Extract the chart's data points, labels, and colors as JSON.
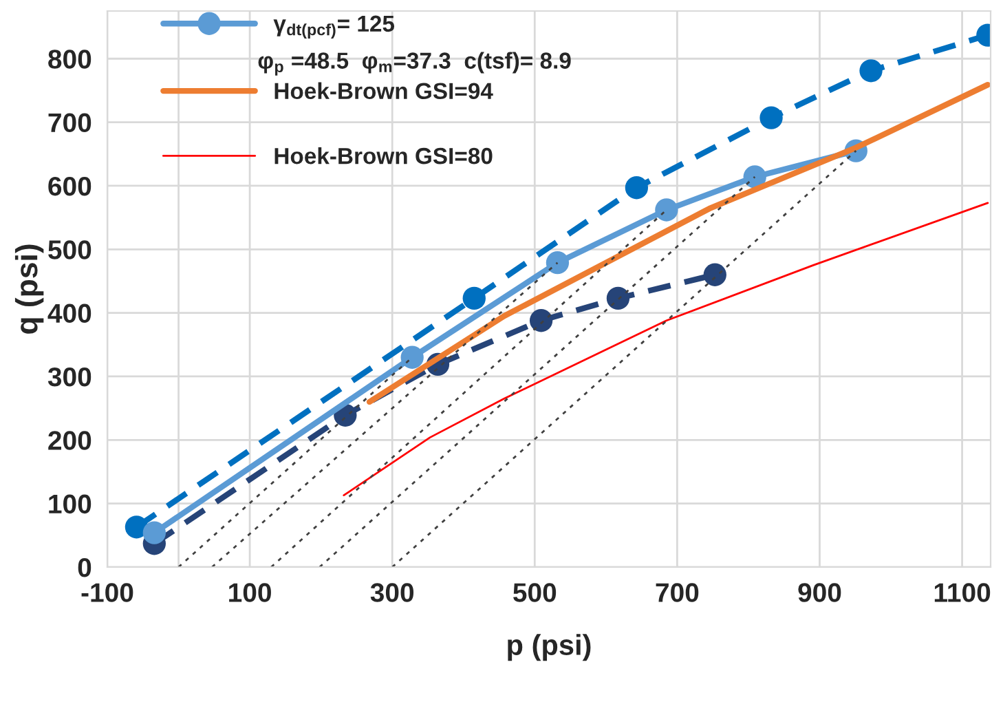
{
  "chart_data": {
    "type": "line",
    "xlabel": "p (psi)",
    "ylabel": "q (psi)",
    "xlim": [
      -100,
      1140
    ],
    "ylim": [
      0,
      875
    ],
    "xticks": [
      -100,
      {
        "value": 0,
        "label": null
      },
      100,
      300,
      500,
      700,
      900,
      1100
    ],
    "yticks": [
      0,
      100,
      200,
      300,
      400,
      500,
      600,
      700,
      800
    ],
    "grid": true,
    "legend": "top left",
    "annotations": [
      "φ$_{p}$ =48.5  φ$_{m}$=37.3  c(tsf)= 8.9"
    ],
    "series": [
      {
        "color": "#0070c0",
        "marker": "circle",
        "line_style": "dashed",
        "x": [
          -59,
          415,
          643,
          832,
          972,
          1136
        ],
        "values": [
          63,
          423,
          597,
          707,
          781,
          837
        ]
      },
      {
        "color": "#264478",
        "marker": "circle",
        "line_style": "dashed",
        "x": [
          -34,
          234,
          364,
          509,
          617,
          753
        ],
        "values": [
          37,
          239,
          319,
          388,
          423,
          460
        ]
      },
      {
        "name": "γ$_{dt(pcf)}$= 125",
        "color": "#5b9bd5",
        "marker": "circle",
        "line_style": "solid",
        "x": [
          -34,
          328,
          532,
          685,
          809,
          951
        ],
        "values": [
          54,
          330,
          479,
          562,
          614,
          655
        ]
      },
      {
        "name": "Hoek-Brown GSI=94",
        "color": "#ed7d31",
        "marker": "none",
        "line_style": "solid",
        "x": [
          268,
          457,
          745,
          951,
          1136
        ],
        "values": [
          260,
          395,
          564,
          660,
          759
        ]
      },
      {
        "name": "Hoek-Brown GSI=80",
        "color": "#ff0000",
        "marker": "none",
        "line_style": "solid",
        "x": [
          232,
          353,
          457,
          685,
          891,
          1136
        ],
        "values": [
          113,
          204,
          265,
          388,
          475,
          573
        ]
      },
      {
        "color": "#404040",
        "marker": "none",
        "line_style": "dotted",
        "x": [
          0,
          328
        ],
        "values": [
          0,
          330
        ]
      },
      {
        "color": "#404040",
        "marker": "none",
        "line_style": "dotted",
        "x": [
          47,
          532
        ],
        "values": [
          0,
          479
        ]
      },
      {
        "color": "#404040",
        "marker": "none",
        "line_style": "dotted",
        "x": [
          130,
          685
        ],
        "values": [
          0,
          562
        ]
      },
      {
        "color": "#404040",
        "marker": "none",
        "line_style": "dotted",
        "x": [
          198,
          809
        ],
        "values": [
          0,
          614
        ]
      },
      {
        "color": "#404040",
        "marker": "none",
        "line_style": "dotted",
        "x": [
          300,
          951
        ],
        "values": [
          0,
          655
        ]
      }
    ]
  }
}
